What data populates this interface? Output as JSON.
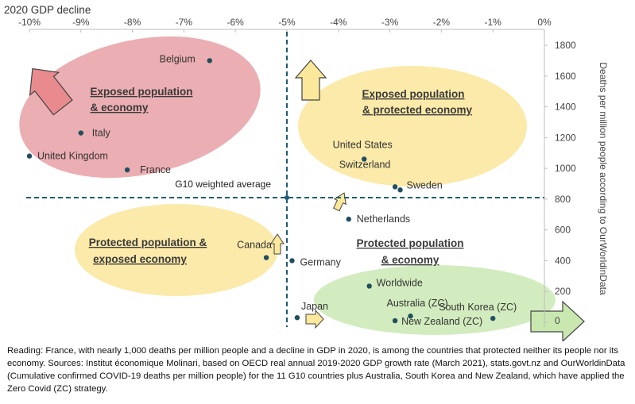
{
  "chart_data": {
    "type": "scatter",
    "title": "2020 GDP decline",
    "xlabel": "2020 GDP decline",
    "ylabel": "Deaths per million people according to OurWorldinData",
    "xlim": [
      -10,
      0
    ],
    "ylim": [
      0,
      1800
    ],
    "x_ticks": [
      "-10%",
      "-9%",
      "-8%",
      "-7%",
      "-6%",
      "-5%",
      "-4%",
      "-3%",
      "-2%",
      "-1%",
      "0%"
    ],
    "y_ticks": [
      "0",
      "200",
      "400",
      "600",
      "800",
      "1000",
      "1200",
      "1400",
      "1600",
      "1800"
    ],
    "reference_lines": {
      "x": -5.0,
      "y": 810,
      "label": "G10 weighted average"
    },
    "points": [
      {
        "label": "Belgium",
        "x": -6.5,
        "y": 1700
      },
      {
        "label": "Italy",
        "x": -9.0,
        "y": 1230
      },
      {
        "label": "United Kingdom",
        "x": -10.0,
        "y": 1080
      },
      {
        "label": "France",
        "x": -8.1,
        "y": 990
      },
      {
        "label": "United States",
        "x": -3.5,
        "y": 1060
      },
      {
        "label": "Switzerland",
        "x": -2.9,
        "y": 880
      },
      {
        "label": "Sweden",
        "x": -2.8,
        "y": 860
      },
      {
        "label": "Netherlands",
        "x": -3.8,
        "y": 670
      },
      {
        "label": "Canada",
        "x": -5.4,
        "y": 420
      },
      {
        "label": "Germany",
        "x": -4.9,
        "y": 400
      },
      {
        "label": "Worldwide",
        "x": -3.4,
        "y": 235
      },
      {
        "label": "Japan",
        "x": -4.8,
        "y": 30
      },
      {
        "label": "Australia (ZC)",
        "x": -2.6,
        "y": 40
      },
      {
        "label": "New Zealand (ZC)",
        "x": -2.9,
        "y": 10
      },
      {
        "label": "South Korea (ZC)",
        "x": -1.0,
        "y": 25
      }
    ],
    "zones": [
      {
        "label_line1": "Exposed population",
        "label_line2": "& economy",
        "color": "#e8a0a4"
      },
      {
        "label_line1": "Exposed population",
        "label_line2": "& protected economy",
        "color": "#fbe8a0"
      },
      {
        "label_line1": "Protected population &",
        "label_line2": "exposed economy",
        "color": "#fbe8a0"
      },
      {
        "label_line1": "Protected population",
        "label_line2": "& economy",
        "color": "#cdeab8"
      }
    ]
  },
  "colors": {
    "point": "#1f4e5f",
    "reference_line": "#1f5c7a",
    "zone_red": "#e8a0a4",
    "zone_yellow": "#fbe8a0",
    "zone_green": "#cdeab8",
    "arrow_red": "#e88a8e",
    "arrow_yellow": "#fbe89a",
    "arrow_green": "#c9e8b0"
  },
  "reading": "Reading: France, with nearly 1,000 deaths per million people and a decline in GDP in 2020, is among the countries that protected neither its people nor its economy. Sources: Institut économique Molinari, based on OECD real annual 2019-2020 GDP growth rate (March 2021), stats.govt.nz and OurWorldinData (Cumulative confirmed COVID-19 deaths per million people) for the 11 G10 countries plus Australia, South Korea and New Zealand, which have applied the Zero Covid (ZC) strategy."
}
